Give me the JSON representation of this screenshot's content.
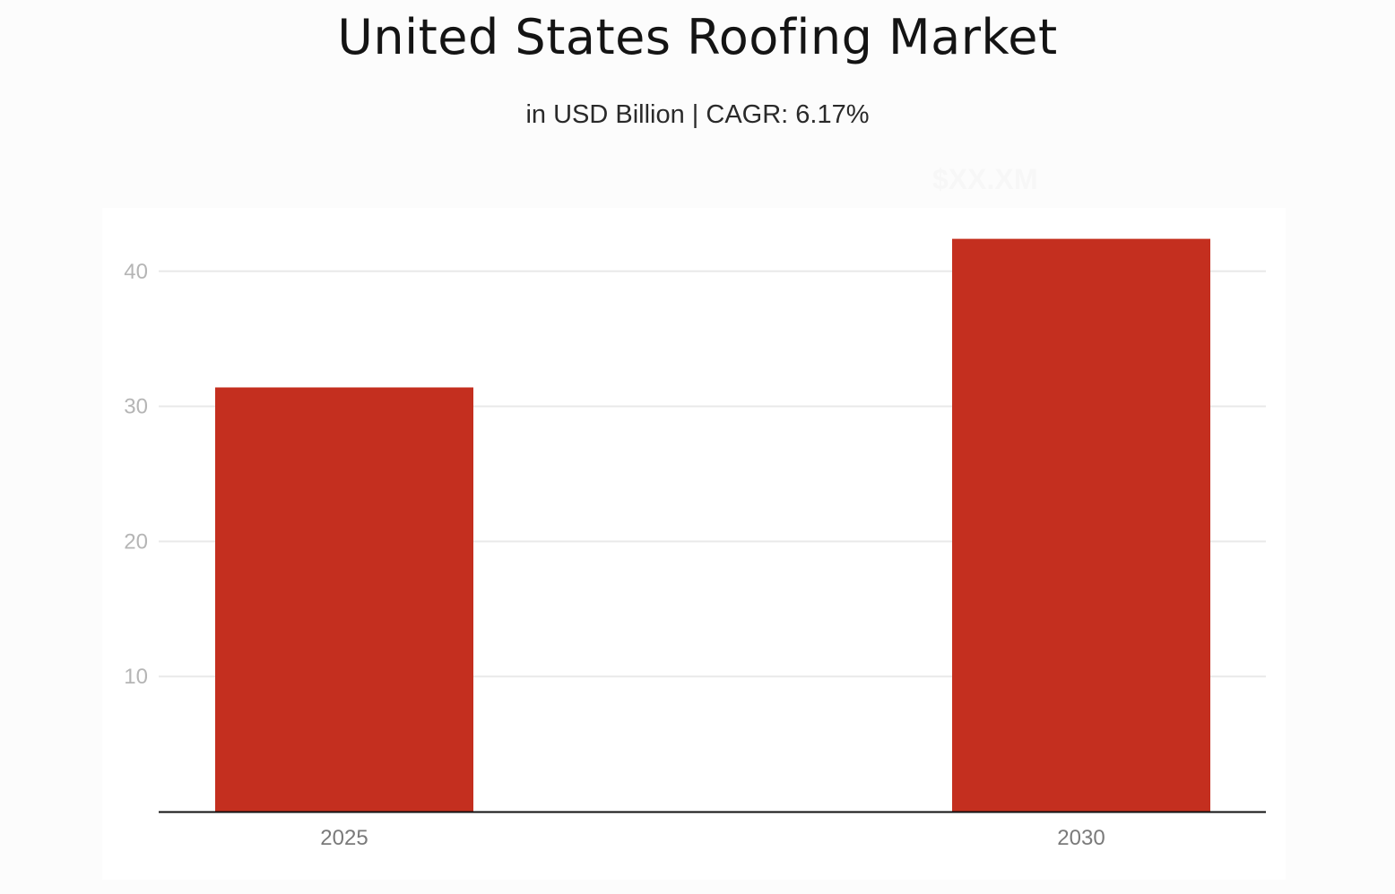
{
  "header": {
    "title": "United States Roofing Market",
    "subtitle": "in USD Billion | CAGR: 6.17%",
    "watermark": "$XX.XM"
  },
  "colors": {
    "bar": "#c42f1f",
    "grid": "#e9e9e9",
    "axis": "#111111",
    "background": "#fcfcfc"
  },
  "chart_data": {
    "type": "bar",
    "title": "United States Roofing Market",
    "subtitle": "in USD Billion | CAGR: 6.17%",
    "categories": [
      "2025",
      "2030"
    ],
    "values": [
      31.4,
      42.4
    ],
    "xlabel": "",
    "ylabel": "",
    "ylim": [
      0,
      45
    ],
    "yticks": [
      10,
      20,
      30,
      40
    ],
    "grid": true,
    "legend": "none"
  }
}
